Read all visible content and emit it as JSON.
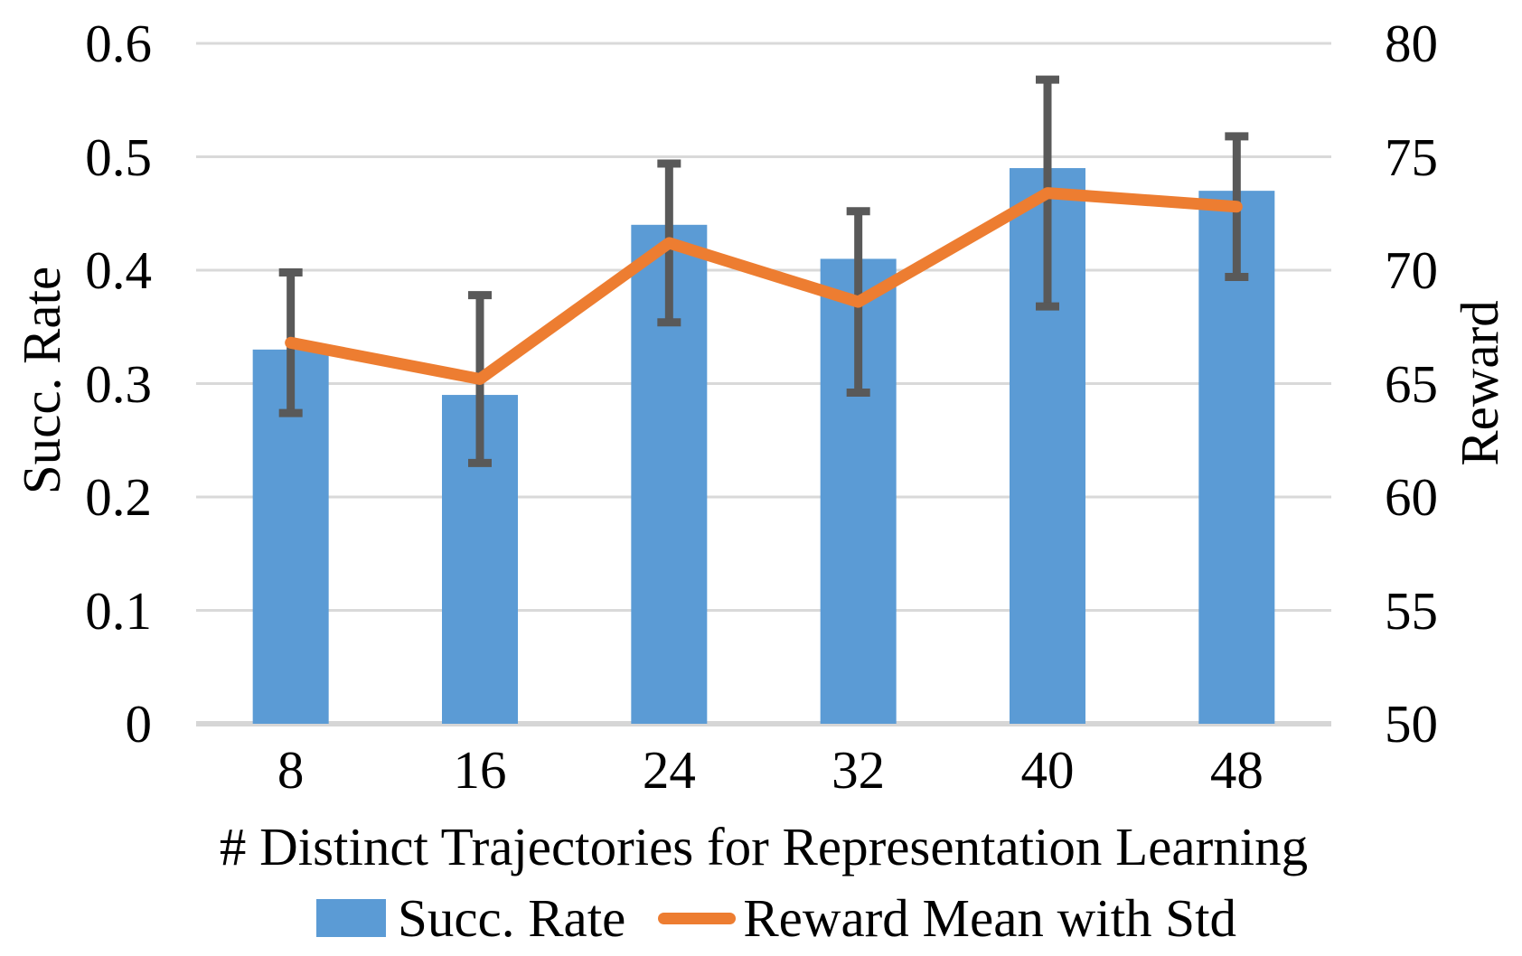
{
  "chart_data": {
    "type": "bar",
    "title": "",
    "categories": [
      "8",
      "16",
      "24",
      "32",
      "40",
      "48"
    ],
    "series": [
      {
        "name": "Succ. Rate",
        "type": "bar",
        "axis": "left",
        "values": [
          0.33,
          0.29,
          0.44,
          0.41,
          0.49,
          0.47
        ],
        "color": "#5B9BD5"
      },
      {
        "name": "Reward Mean with Std",
        "type": "line",
        "axis": "right",
        "values": [
          66.8,
          65.2,
          71.2,
          68.6,
          73.4,
          72.8
        ],
        "std": [
          3.1,
          3.7,
          3.5,
          4.0,
          5.0,
          3.1
        ],
        "color": "#ED7D31",
        "errorbar_color": "#595959"
      }
    ],
    "xlabel": "# Distinct Trajectories for Representation Learning",
    "ylabel_left": "Succ. Rate",
    "ylabel_right": "Reward",
    "left_axis": {
      "min": 0,
      "max": 0.6,
      "ticks": [
        "0",
        "0.1",
        "0.2",
        "0.3",
        "0.4",
        "0.5",
        "0.6"
      ]
    },
    "right_axis": {
      "min": 50,
      "max": 80,
      "ticks": [
        "50",
        "55",
        "60",
        "65",
        "70",
        "75",
        "80"
      ]
    },
    "grid": true,
    "gridline_color": "#D9D9D9",
    "baseline_color": "#D6D6D6",
    "legend_position": "bottom",
    "legend": [
      "Succ. Rate",
      "Reward Mean with Std"
    ],
    "background": "#FFFFFF"
  }
}
